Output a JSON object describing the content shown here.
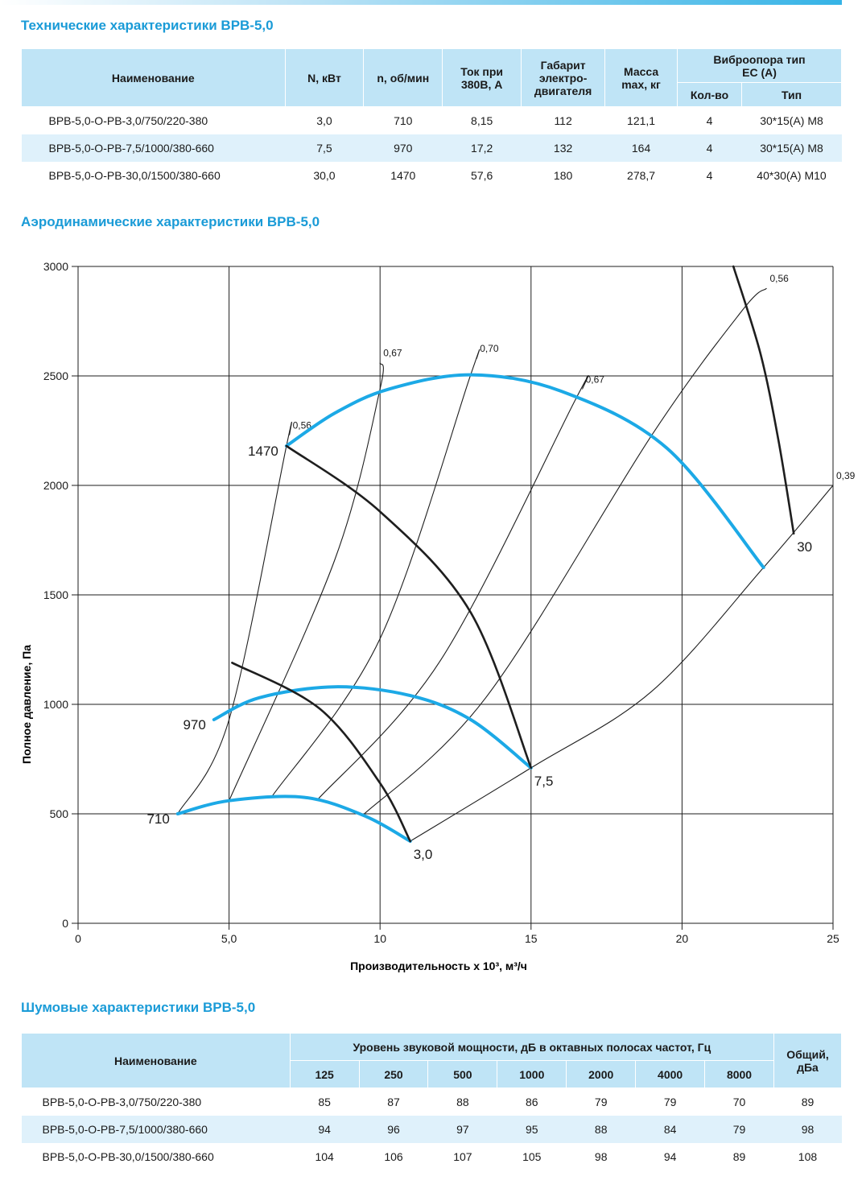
{
  "tech": {
    "title": "Технические характеристики ВРВ-5,0",
    "headers": {
      "name": "Наименование",
      "power": "N, кВт",
      "rpm": "n, об/мин",
      "current": "Ток при 380В, А",
      "frame": "Габарит электро-двигателя",
      "mass": "Масса max, кг",
      "vibro": "Виброопора тип ЕС (А)",
      "vibro_count": "Кол-во",
      "vibro_type": "Тип"
    },
    "rows": [
      {
        "name": "ВРВ-5,0-О-РВ-3,0/750/220-380",
        "power": "3,0",
        "rpm": "710",
        "current": "8,15",
        "frame": "112",
        "mass": "121,1",
        "count": "4",
        "type": "30*15(А) М8"
      },
      {
        "name": "ВРВ-5,0-О-РВ-7,5/1000/380-660",
        "power": "7,5",
        "rpm": "970",
        "current": "17,2",
        "frame": "132",
        "mass": "164",
        "count": "4",
        "type": "30*15(А) М8"
      },
      {
        "name": "ВРВ-5,0-О-РВ-30,0/1500/380-660",
        "power": "30,0",
        "rpm": "1470",
        "current": "57,6",
        "frame": "180",
        "mass": "278,7",
        "count": "4",
        "type": "40*30(А) М10"
      }
    ]
  },
  "aero": {
    "title": "Аэродинамические характеристики ВРВ-5,0"
  },
  "chart_data": {
    "type": "line",
    "title": "",
    "xlabel": "Производительность х 10³, м³/ч",
    "ylabel": "Полное давление, Па",
    "xlim": [
      0,
      25
    ],
    "ylim": [
      0,
      3000
    ],
    "x_ticks": [
      "0",
      "5,0",
      "10",
      "15",
      "20",
      "25"
    ],
    "y_ticks": [
      "0",
      "500",
      "1000",
      "1500",
      "2000",
      "2500",
      "3000"
    ],
    "grid": true,
    "colors": {
      "fan_curve": "#1ca9e6",
      "power_curve": "#1e1e1e",
      "eff_line": "#1e1e1e",
      "grid": "#1e1e1e"
    },
    "series": [
      {
        "name": "1470",
        "kind": "fan",
        "points": [
          [
            6.9,
            2180
          ],
          [
            8.5,
            2330
          ],
          [
            10.3,
            2440
          ],
          [
            13.0,
            2505
          ],
          [
            16.0,
            2430
          ],
          [
            19.5,
            2170
          ],
          [
            22.7,
            1625
          ]
        ]
      },
      {
        "name": "970",
        "kind": "fan",
        "points": [
          [
            4.5,
            930
          ],
          [
            6.0,
            1030
          ],
          [
            8.5,
            1080
          ],
          [
            11.0,
            1040
          ],
          [
            13.0,
            930
          ],
          [
            15.0,
            710
          ]
        ]
      },
      {
        "name": "710",
        "kind": "fan",
        "points": [
          [
            3.3,
            500
          ],
          [
            5.0,
            560
          ],
          [
            7.5,
            575
          ],
          [
            9.5,
            490
          ],
          [
            11.0,
            375
          ]
        ]
      },
      {
        "name": "30",
        "kind": "power",
        "points": [
          [
            6.9,
            2180
          ],
          [
            10.0,
            1880
          ],
          [
            13.0,
            1420
          ],
          [
            15.0,
            710
          ]
        ]
      },
      {
        "name": "7,5",
        "kind": "power",
        "points": [
          [
            5.1,
            1190
          ],
          [
            8.0,
            980
          ],
          [
            10.0,
            640
          ],
          [
            11.0,
            375
          ]
        ]
      },
      {
        "name": "3,0",
        "kind": "power",
        "points": [
          [
            21.7,
            3000
          ],
          [
            22.6,
            2600
          ],
          [
            23.2,
            2200
          ],
          [
            23.7,
            1780
          ]
        ]
      }
    ],
    "efficiency_lines": [
      {
        "label": "0,56",
        "points": [
          [
            3.3,
            500
          ],
          [
            5.0,
            930
          ],
          [
            6.9,
            2180
          ],
          [
            7.0,
            2230
          ]
        ]
      },
      {
        "label": "0,67",
        "points": [
          [
            5.0,
            560
          ],
          [
            8.5,
            1660
          ],
          [
            10.0,
            2440
          ],
          [
            10.0,
            2560
          ]
        ]
      },
      {
        "label": "0,70",
        "points": [
          [
            6.4,
            575
          ],
          [
            10.0,
            1300
          ],
          [
            13.0,
            2505
          ],
          [
            13.2,
            2580
          ]
        ]
      },
      {
        "label": "0,67",
        "points": [
          [
            7.9,
            560
          ],
          [
            12.0,
            1200
          ],
          [
            16.5,
            2400
          ],
          [
            16.7,
            2440
          ]
        ]
      },
      {
        "label": "0,56",
        "points": [
          [
            9.4,
            490
          ],
          [
            13.5,
            1030
          ],
          [
            19.0,
            2230
          ],
          [
            22.0,
            2800
          ],
          [
            22.8,
            2900
          ]
        ]
      },
      {
        "label": "0,39",
        "points": [
          [
            11.0,
            375
          ],
          [
            15.0,
            710
          ],
          [
            19.0,
            1060
          ],
          [
            22.7,
            1625
          ],
          [
            25.0,
            2000
          ]
        ]
      }
    ],
    "annotations": [
      {
        "text": "1470",
        "x": 6.9,
        "y": 2180,
        "pos": "left"
      },
      {
        "text": "970",
        "x": 4.5,
        "y": 930,
        "pos": "left"
      },
      {
        "text": "710",
        "x": 3.3,
        "y": 500,
        "pos": "left"
      },
      {
        "text": "30",
        "x": 23.7,
        "y": 1780,
        "pos": "below-right"
      },
      {
        "text": "7,5",
        "x": 15.0,
        "y": 710,
        "pos": "below-right"
      },
      {
        "text": "3,0",
        "x": 11.0,
        "y": 375,
        "pos": "below-right"
      }
    ]
  },
  "noise": {
    "title": "Шумовые характеристики ВРВ-5,0",
    "headers": {
      "name": "Наименование",
      "group": "Уровень звуковой мощности, дБ в октавных полосах частот, Гц",
      "total": "Общий, дБа",
      "freqs": [
        "125",
        "250",
        "500",
        "1000",
        "2000",
        "4000",
        "8000"
      ]
    },
    "rows": [
      {
        "name": "ВРВ-5,0-О-РВ-3,0/750/220-380",
        "values": [
          "85",
          "87",
          "88",
          "86",
          "79",
          "79",
          "70"
        ],
        "total": "89"
      },
      {
        "name": "ВРВ-5,0-О-РВ-7,5/1000/380-660",
        "values": [
          "94",
          "96",
          "97",
          "95",
          "88",
          "84",
          "79"
        ],
        "total": "98"
      },
      {
        "name": "ВРВ-5,0-О-РВ-30,0/1500/380-660",
        "values": [
          "104",
          "106",
          "107",
          "105",
          "98",
          "94",
          "89"
        ],
        "total": "108"
      }
    ]
  }
}
